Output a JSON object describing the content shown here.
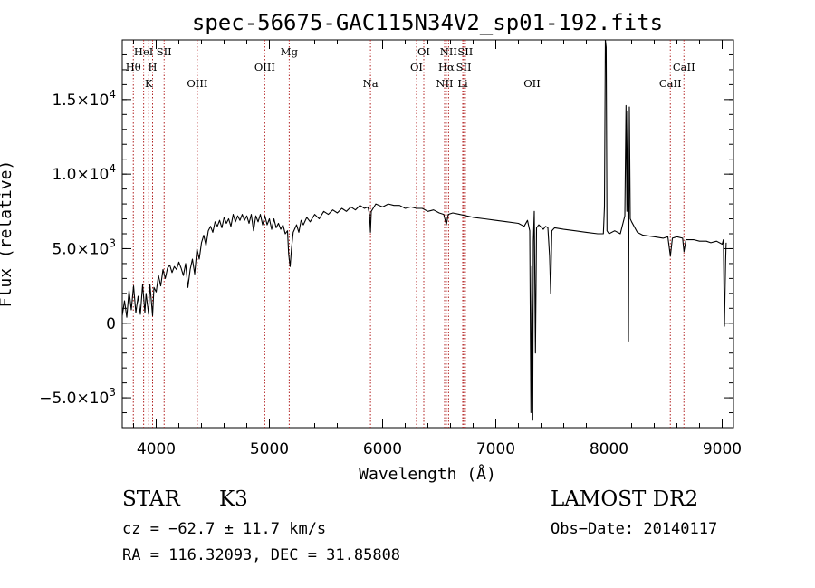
{
  "chart_data": {
    "type": "line",
    "title": "spec-56675-GAC115N34V2_sp01-192.fits",
    "xlabel": "Wavelength (Å)",
    "ylabel": "Flux (relative)",
    "xlim": [
      3700,
      9100
    ],
    "ylim": [
      -7000,
      19000
    ],
    "x_ticks": [
      {
        "value": 4000,
        "label": "4000"
      },
      {
        "value": 5000,
        "label": "5000"
      },
      {
        "value": 6000,
        "label": "6000"
      },
      {
        "value": 7000,
        "label": "7000"
      },
      {
        "value": 8000,
        "label": "8000"
      },
      {
        "value": 9000,
        "label": "9000"
      }
    ],
    "y_ticks": [
      {
        "value": -5000,
        "mant": "−5.0×10",
        "exp": "3"
      },
      {
        "value": 0,
        "mant": "0",
        "exp": ""
      },
      {
        "value": 5000,
        "mant": "5.0×10",
        "exp": "3"
      },
      {
        "value": 10000,
        "mant": "1.0×10",
        "exp": "4"
      },
      {
        "value": 15000,
        "mant": "1.5×10",
        "exp": "4"
      }
    ],
    "grid": false,
    "line_color": "#000000",
    "marker_color": "#b22222",
    "spectral_lines": [
      {
        "label": "Hθ",
        "wavelength": 3798,
        "row": 2
      },
      {
        "label": "HeI",
        "wavelength": 3889,
        "row": 1
      },
      {
        "label": "K",
        "wavelength": 3934,
        "row": 3
      },
      {
        "label": "H",
        "wavelength": 3968,
        "row": 2
      },
      {
        "label": "SII",
        "wavelength": 4070,
        "row": 1
      },
      {
        "label": "OIII",
        "wavelength": 4363,
        "row": 3
      },
      {
        "label": "OIII",
        "wavelength": 4959,
        "row": 2
      },
      {
        "label": "Mg",
        "wavelength": 5175,
        "row": 1
      },
      {
        "label": "Na",
        "wavelength": 5893,
        "row": 3
      },
      {
        "label": "OI",
        "wavelength": 6300,
        "row": 2
      },
      {
        "label": "OI",
        "wavelength": 6364,
        "row": 1
      },
      {
        "label": "NII",
        "wavelength": 6548,
        "row": 3
      },
      {
        "label": "Hα",
        "wavelength": 6563,
        "row": 2
      },
      {
        "label": "NII",
        "wavelength": 6583,
        "row": 1
      },
      {
        "label": "Li",
        "wavelength": 6708,
        "row": 3
      },
      {
        "label": "SII",
        "wavelength": 6717,
        "row": 2
      },
      {
        "label": "SII",
        "wavelength": 6731,
        "row": 1
      },
      {
        "label": "OII",
        "wavelength": 7320,
        "row": 3
      },
      {
        "label": "CaII",
        "wavelength": 8542,
        "row": 3
      },
      {
        "label": "CaII",
        "wavelength": 8662,
        "row": 2
      }
    ],
    "spectrum": [
      [
        3700,
        500
      ],
      [
        3720,
        1500
      ],
      [
        3740,
        400
      ],
      [
        3760,
        2200
      ],
      [
        3780,
        900
      ],
      [
        3800,
        2500
      ],
      [
        3820,
        700
      ],
      [
        3840,
        1800
      ],
      [
        3860,
        600
      ],
      [
        3880,
        2600
      ],
      [
        3900,
        700
      ],
      [
        3910,
        2000
      ],
      [
        3933,
        600
      ],
      [
        3945,
        2600
      ],
      [
        3968,
        500
      ],
      [
        3980,
        2400
      ],
      [
        4000,
        2100
      ],
      [
        4020,
        3200
      ],
      [
        4040,
        2500
      ],
      [
        4060,
        3600
      ],
      [
        4080,
        3000
      ],
      [
        4100,
        3700
      ],
      [
        4120,
        3900
      ],
      [
        4140,
        3400
      ],
      [
        4160,
        3800
      ],
      [
        4180,
        3600
      ],
      [
        4200,
        4100
      ],
      [
        4220,
        3700
      ],
      [
        4240,
        3200
      ],
      [
        4260,
        4000
      ],
      [
        4280,
        2400
      ],
      [
        4300,
        3600
      ],
      [
        4320,
        4300
      ],
      [
        4340,
        3300
      ],
      [
        4360,
        5000
      ],
      [
        4380,
        4300
      ],
      [
        4400,
        5400
      ],
      [
        4420,
        5900
      ],
      [
        4440,
        5200
      ],
      [
        4460,
        6200
      ],
      [
        4480,
        6500
      ],
      [
        4500,
        6100
      ],
      [
        4520,
        6800
      ],
      [
        4540,
        6500
      ],
      [
        4560,
        6900
      ],
      [
        4580,
        6400
      ],
      [
        4600,
        7100
      ],
      [
        4620,
        6700
      ],
      [
        4640,
        7000
      ],
      [
        4660,
        6500
      ],
      [
        4680,
        7300
      ],
      [
        4700,
        6800
      ],
      [
        4720,
        7200
      ],
      [
        4740,
        6900
      ],
      [
        4760,
        7300
      ],
      [
        4780,
        6900
      ],
      [
        4800,
        7200
      ],
      [
        4820,
        6700
      ],
      [
        4840,
        7300
      ],
      [
        4860,
        6200
      ],
      [
        4880,
        7200
      ],
      [
        4900,
        6800
      ],
      [
        4920,
        7300
      ],
      [
        4940,
        6600
      ],
      [
        4960,
        7200
      ],
      [
        4980,
        6600
      ],
      [
        5000,
        7000
      ],
      [
        5020,
        6300
      ],
      [
        5040,
        7000
      ],
      [
        5060,
        6400
      ],
      [
        5080,
        6700
      ],
      [
        5100,
        6300
      ],
      [
        5120,
        6600
      ],
      [
        5140,
        6000
      ],
      [
        5160,
        6200
      ],
      [
        5170,
        4600
      ],
      [
        5183,
        3800
      ],
      [
        5195,
        5000
      ],
      [
        5210,
        6100
      ],
      [
        5240,
        6600
      ],
      [
        5260,
        6100
      ],
      [
        5280,
        6900
      ],
      [
        5300,
        6600
      ],
      [
        5330,
        7100
      ],
      [
        5360,
        6800
      ],
      [
        5400,
        7300
      ],
      [
        5440,
        7000
      ],
      [
        5480,
        7500
      ],
      [
        5520,
        7300
      ],
      [
        5560,
        7600
      ],
      [
        5600,
        7400
      ],
      [
        5640,
        7700
      ],
      [
        5680,
        7500
      ],
      [
        5720,
        7800
      ],
      [
        5760,
        7600
      ],
      [
        5800,
        7900
      ],
      [
        5840,
        7700
      ],
      [
        5870,
        7800
      ],
      [
        5885,
        7300
      ],
      [
        5893,
        6100
      ],
      [
        5900,
        7500
      ],
      [
        5940,
        8000
      ],
      [
        6000,
        7800
      ],
      [
        6050,
        8000
      ],
      [
        6100,
        7900
      ],
      [
        6150,
        7900
      ],
      [
        6200,
        7700
      ],
      [
        6250,
        7800
      ],
      [
        6300,
        7700
      ],
      [
        6350,
        7700
      ],
      [
        6400,
        7500
      ],
      [
        6450,
        7600
      ],
      [
        6500,
        7400
      ],
      [
        6540,
        7300
      ],
      [
        6563,
        6600
      ],
      [
        6580,
        7300
      ],
      [
        6620,
        7400
      ],
      [
        6680,
        7300
      ],
      [
        6740,
        7200
      ],
      [
        6800,
        7100
      ],
      [
        6900,
        7000
      ],
      [
        7000,
        6900
      ],
      [
        7100,
        6800
      ],
      [
        7200,
        6700
      ],
      [
        7250,
        6500
      ],
      [
        7280,
        6900
      ],
      [
        7300,
        6200
      ],
      [
        7310,
        -6000
      ],
      [
        7318,
        3800
      ],
      [
        7326,
        -6500
      ],
      [
        7332,
        5500
      ],
      [
        7340,
        7500
      ],
      [
        7350,
        -2000
      ],
      [
        7360,
        6400
      ],
      [
        7380,
        6600
      ],
      [
        7420,
        6300
      ],
      [
        7440,
        6500
      ],
      [
        7460,
        6400
      ],
      [
        7475,
        4500
      ],
      [
        7485,
        2000
      ],
      [
        7495,
        6200
      ],
      [
        7520,
        6400
      ],
      [
        7600,
        6300
      ],
      [
        7700,
        6200
      ],
      [
        7800,
        6100
      ],
      [
        7900,
        6000
      ],
      [
        7950,
        6000
      ],
      [
        7960,
        7800
      ],
      [
        7968,
        19000
      ],
      [
        7975,
        18500
      ],
      [
        7982,
        6200
      ],
      [
        8000,
        6000
      ],
      [
        8050,
        6200
      ],
      [
        8100,
        6000
      ],
      [
        8140,
        7200
      ],
      [
        8150,
        14600
      ],
      [
        8158,
        7500
      ],
      [
        8165,
        14200
      ],
      [
        8172,
        -1200
      ],
      [
        8180,
        14500
      ],
      [
        8188,
        7000
      ],
      [
        8200,
        6800
      ],
      [
        8250,
        6100
      ],
      [
        8300,
        5900
      ],
      [
        8400,
        5800
      ],
      [
        8480,
        5700
      ],
      [
        8520,
        5800
      ],
      [
        8542,
        4500
      ],
      [
        8560,
        5700
      ],
      [
        8600,
        5800
      ],
      [
        8650,
        5700
      ],
      [
        8662,
        4800
      ],
      [
        8680,
        5600
      ],
      [
        8750,
        5600
      ],
      [
        8800,
        5500
      ],
      [
        8860,
        5500
      ],
      [
        8900,
        5400
      ],
      [
        8950,
        5500
      ],
      [
        9000,
        5300
      ],
      [
        9010,
        5600
      ],
      [
        9020,
        -200
      ],
      [
        9030,
        4200
      ],
      [
        9035,
        5400
      ]
    ]
  },
  "info": {
    "object_class": "STAR",
    "subclass": "K3",
    "survey": "LAMOST DR2",
    "cz": "cz = −62.7 ± 11.7 km/s",
    "obs_date": "Obs−Date: 20140117",
    "coords": "RA = 116.32093, DEC =  31.85808"
  }
}
